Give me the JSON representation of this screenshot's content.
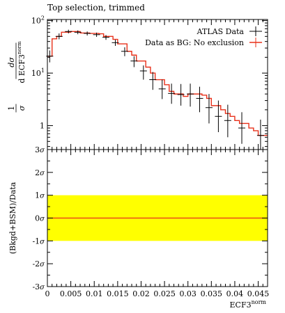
{
  "chart_data": [
    {
      "type": "line",
      "title": "Top selection, trimmed",
      "ylabel_num": "dσ",
      "ylabel_den": "d ECF3",
      "ylabel_den_sup": "norm",
      "ylabel_prefix": "1",
      "ylabel_prefix_den": "σ",
      "yscale": "log",
      "ylim": [
        0.35,
        105
      ],
      "y_ticks": [
        {
          "v": 100,
          "b": "10",
          "e": "2"
        },
        {
          "v": 10,
          "b": "10",
          "e": "1"
        },
        {
          "v": 1,
          "b": "1",
          "e": ""
        }
      ],
      "legend_position": "top-right",
      "series": [
        {
          "name": "ATLAS Data",
          "color": "#000000",
          "style": "points-with-errors",
          "x": [
            0.0005,
            0.0025,
            0.0045,
            0.0065,
            0.0085,
            0.0105,
            0.0125,
            0.0145,
            0.0165,
            0.0185,
            0.0205,
            0.0225,
            0.0245,
            0.0265,
            0.0285,
            0.0305,
            0.0325,
            0.0345,
            0.0365,
            0.0385,
            0.0415,
            0.0455
          ],
          "y": [
            21,
            50,
            62,
            60,
            57,
            54,
            48,
            38,
            26,
            17,
            11,
            7.5,
            5,
            4.1,
            3.9,
            4.0,
            3.3,
            2.2,
            1.5,
            1.25,
            0.9,
            0.65
          ],
          "err_lo": [
            16,
            44,
            57,
            55,
            52,
            49,
            43,
            33,
            21,
            13,
            7.5,
            4.8,
            3.2,
            2.6,
            2.4,
            2.3,
            1.8,
            1.1,
            0.75,
            0.6,
            0.45,
            0.35
          ],
          "err_hi": [
            27,
            57,
            67,
            65,
            62,
            59,
            53,
            43,
            31,
            21,
            14,
            10.5,
            7.5,
            6.3,
            6.2,
            6.3,
            5.5,
            4.0,
            3.0,
            2.5,
            1.8,
            1.3
          ]
        },
        {
          "name": "Data as BG: No exclusion",
          "color": "#e8301a",
          "style": "histogram",
          "edges": [
            0,
            0.001,
            0.002,
            0.003,
            0.005,
            0.007,
            0.009,
            0.011,
            0.012,
            0.014,
            0.015,
            0.017,
            0.018,
            0.019,
            0.021,
            0.022,
            0.023,
            0.025,
            0.026,
            0.027,
            0.029,
            0.03,
            0.031,
            0.033,
            0.034,
            0.035,
            0.037,
            0.038,
            0.039,
            0.04,
            0.041,
            0.043,
            0.044,
            0.045,
            0.047
          ],
          "values": [
            21,
            45,
            50,
            60,
            62,
            58,
            57,
            56,
            50,
            44,
            36,
            26,
            22,
            17,
            13,
            10,
            7.5,
            6,
            4.5,
            4,
            3.6,
            4,
            4,
            3.8,
            3.3,
            2.4,
            2,
            1.7,
            1.5,
            1.25,
            1.1,
            0.9,
            0.8,
            0.65
          ]
        }
      ]
    },
    {
      "type": "line",
      "ylabel": "(Bkgd+BSM)/Data",
      "xlabel": "ECF3",
      "xlabel_sup": "norm",
      "xlim": [
        0,
        0.047
      ],
      "ylim": [
        -3,
        3
      ],
      "x_ticks": [
        "0",
        "0.005",
        "0.01",
        "0.015",
        "0.02",
        "0.025",
        "0.03",
        "0.035",
        "0.04",
        "0.045"
      ],
      "y_ticks": [
        {
          "v": 3,
          "label": "3"
        },
        {
          "v": 2,
          "label": "2"
        },
        {
          "v": 1,
          "label": "1"
        },
        {
          "v": 0,
          "label": "0"
        },
        {
          "v": -1,
          "label": "-1"
        },
        {
          "v": -2,
          "label": "-2"
        },
        {
          "v": -3,
          "label": "-3"
        }
      ],
      "y_tick_unit": "σ",
      "band": {
        "low": -1,
        "high": 1,
        "color": "#ffff00"
      },
      "series": [
        {
          "color": "#e8301a",
          "x": [
            0,
            0.047
          ],
          "y": [
            0,
            0
          ]
        }
      ]
    }
  ]
}
